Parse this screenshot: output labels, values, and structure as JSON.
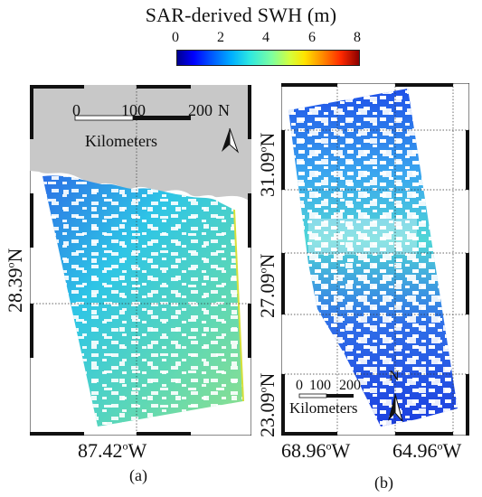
{
  "title": "SAR-derived SWH (m)",
  "colorbar": {
    "ticks": [
      "0",
      "2",
      "4",
      "6",
      "8"
    ],
    "range": [
      0,
      8
    ],
    "colors": [
      "#00008f",
      "#0000ff",
      "#00b0ff",
      "#2ee8e0",
      "#d4ff3c",
      "#ffe400",
      "#ff8a00",
      "#ff2a00",
      "#8b0000"
    ]
  },
  "panel_a": {
    "caption": "(a)",
    "lat_label": "28.39",
    "lat_suffix": "N",
    "lon_label": "87.42",
    "lon_suffix": "W",
    "scalebar": {
      "ticks": [
        "0",
        "100",
        "200"
      ],
      "unit": "Kilometers"
    },
    "north_label": "N",
    "land_color": "#c8c8c8",
    "swh_dominant_m": [
      2.3,
      3.5
    ]
  },
  "panel_b": {
    "caption": "(b)",
    "lat_labels": [
      "31.09",
      "27.09",
      "23.09"
    ],
    "lat_suffix": "N",
    "lon_labels": [
      "68.96",
      "64.96"
    ],
    "lon_suffix": "W",
    "scalebar": {
      "ticks": [
        "0",
        "100",
        "200"
      ],
      "unit": "Kilometers"
    },
    "north_label": "N",
    "swh_dominant_m": [
      0.8,
      3.0
    ]
  },
  "degree_symbol": "o"
}
